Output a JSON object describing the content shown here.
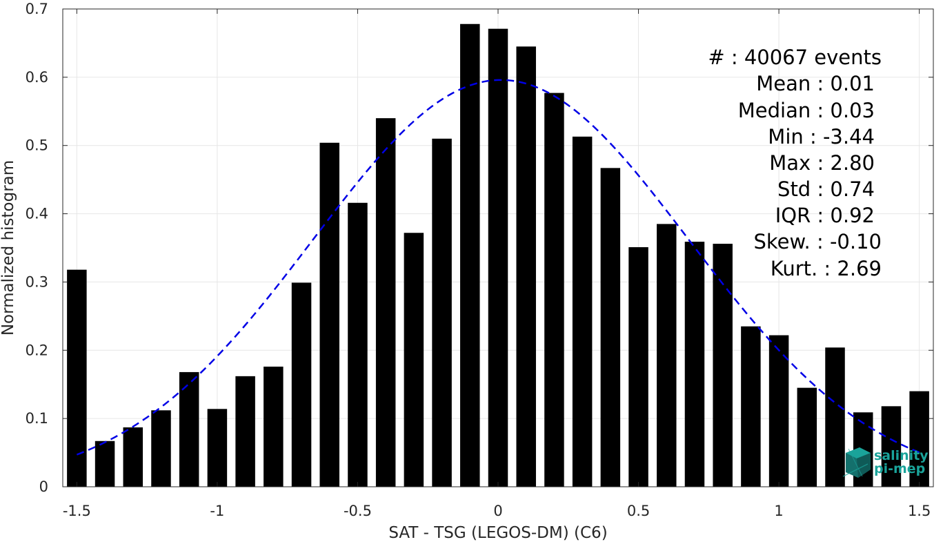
{
  "chart_data": {
    "type": "bar",
    "xlabel": "SAT - TSG (LEGOS-DM) (C6)",
    "ylabel": "Normalized histogram",
    "xlim": [
      -1.55,
      1.55
    ],
    "ylim": [
      0,
      0.7
    ],
    "x_ticks": [
      -1.5,
      -1,
      -0.5,
      0,
      0.5,
      1,
      1.5
    ],
    "x_tick_labels": [
      "-1.5",
      "-1",
      "-0.5",
      "0",
      "0.5",
      "1",
      "1.5"
    ],
    "y_ticks": [
      0,
      0.1,
      0.2,
      0.3,
      0.4,
      0.5,
      0.6,
      0.7
    ],
    "y_tick_labels": [
      "0",
      "0.1",
      "0.2",
      "0.3",
      "0.4",
      "0.5",
      "0.6",
      "0.7"
    ],
    "grid": true,
    "bar_width": 0.07,
    "bar_color": "#000000",
    "x": [
      -1.5,
      -1.4,
      -1.3,
      -1.2,
      -1.1,
      -1.0,
      -0.9,
      -0.8,
      -0.7,
      -0.6,
      -0.5,
      -0.4,
      -0.3,
      -0.2,
      -0.1,
      0.0,
      0.1,
      0.2,
      0.3,
      0.4,
      0.5,
      0.6,
      0.7,
      0.8,
      0.9,
      1.0,
      1.1,
      1.2,
      1.3,
      1.4,
      1.5
    ],
    "values": [
      0.318,
      0.067,
      0.087,
      0.112,
      0.168,
      0.114,
      0.162,
      0.176,
      0.299,
      0.504,
      0.416,
      0.54,
      0.372,
      0.51,
      0.678,
      0.671,
      0.645,
      0.577,
      0.513,
      0.467,
      0.351,
      0.385,
      0.359,
      0.356,
      0.235,
      0.222,
      0.145,
      0.204,
      0.109,
      0.118,
      0.14
    ],
    "fit_curve": {
      "style": "dashed",
      "color": "#0000e6",
      "mean": 0.01,
      "std": 0.67,
      "peak": 0.596,
      "x_range": [
        -1.5,
        1.5
      ]
    }
  },
  "stats": {
    "count": "#  : 40067 events",
    "mean": "Mean : 0.01",
    "median": "Median : 0.03",
    "min": "Min : -3.44",
    "max": "Max : 2.80",
    "std": "Std : 0.74",
    "iqr": "IQR : 0.92",
    "skew": "Skew. : -0.10",
    "kurt": "Kurt. : 2.69"
  },
  "logo": {
    "line1": "salinity",
    "line2": "pi-mep",
    "color": "#1aa39a"
  }
}
